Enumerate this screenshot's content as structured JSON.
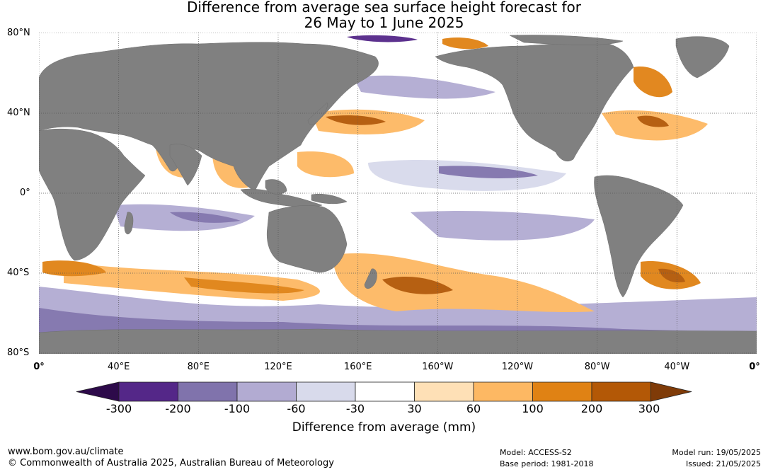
{
  "title_line1": "Difference from average sea surface height forecast for",
  "title_line2": "26 May to 1 June 2025",
  "lat_labels": [
    "80°N",
    "40°N",
    "0°",
    "40°S",
    "80°S"
  ],
  "lon_labels": [
    "0°",
    "40°E",
    "80°E",
    "120°E",
    "160°E",
    "160°W",
    "120°W",
    "80°W",
    "40°W",
    "0°"
  ],
  "colorbar": {
    "ticks": [
      "-300",
      "-200",
      "-100",
      "-60",
      "-30",
      "30",
      "60",
      "100",
      "200",
      "300"
    ],
    "colors": [
      "#2d0a4a",
      "#542788",
      "#8073ac",
      "#b2abd2",
      "#d8daeb",
      "#ffffff",
      "#fee0b6",
      "#fdb863",
      "#e08214",
      "#b35806",
      "#7f3b08"
    ],
    "label": "Difference from average (mm)"
  },
  "map_colors": {
    "land": "#808080",
    "ocean": "#ffffff",
    "grid": "#555555"
  },
  "footer": {
    "url": "www.bom.gov.au/climate",
    "copyright": "© Commonwealth of Australia 2025, Australian Bureau of Meteorology",
    "model": "Model: ACCESS-S2",
    "base_period": "Base period: 1981-2018",
    "model_run": "Model run: 19/05/2025",
    "issued": "Issued: 21/05/2025"
  }
}
